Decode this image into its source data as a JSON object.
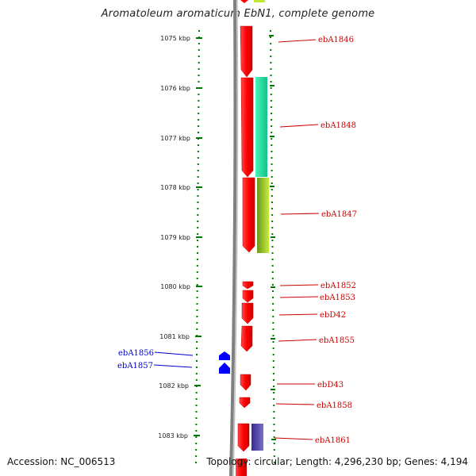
{
  "title": "Aromatoleum aromaticum EbN1, complete genome",
  "footer": {
    "accession": "Accession: NC_006513",
    "topology": "Topology: circular; Length: 4,296,230 bp; Genes: 4,194"
  },
  "colors": {
    "forward_gene": "#ff0000",
    "reverse_gene": "#0000ff",
    "tick": "#007700",
    "backbone": "#808080",
    "forward_label": "#cc0000",
    "reverse_label": "#0000cc"
  },
  "kbp_ticks": [
    "1075 kbp",
    "1076 kbp",
    "1077 kbp",
    "1078 kbp",
    "1079 kbp",
    "1080 kbp",
    "1081 kbp",
    "1082 kbp",
    "1083 kbp"
  ],
  "gene_labels_right": [
    "ebA1846",
    "ebA1848",
    "ebA1847",
    "ebA1852",
    "ebA1853",
    "ebD42",
    "ebA1855",
    "ebD43",
    "ebA1858",
    "ebA1861"
  ],
  "gene_labels_left": [
    "ebA1856",
    "ebA1857"
  ]
}
